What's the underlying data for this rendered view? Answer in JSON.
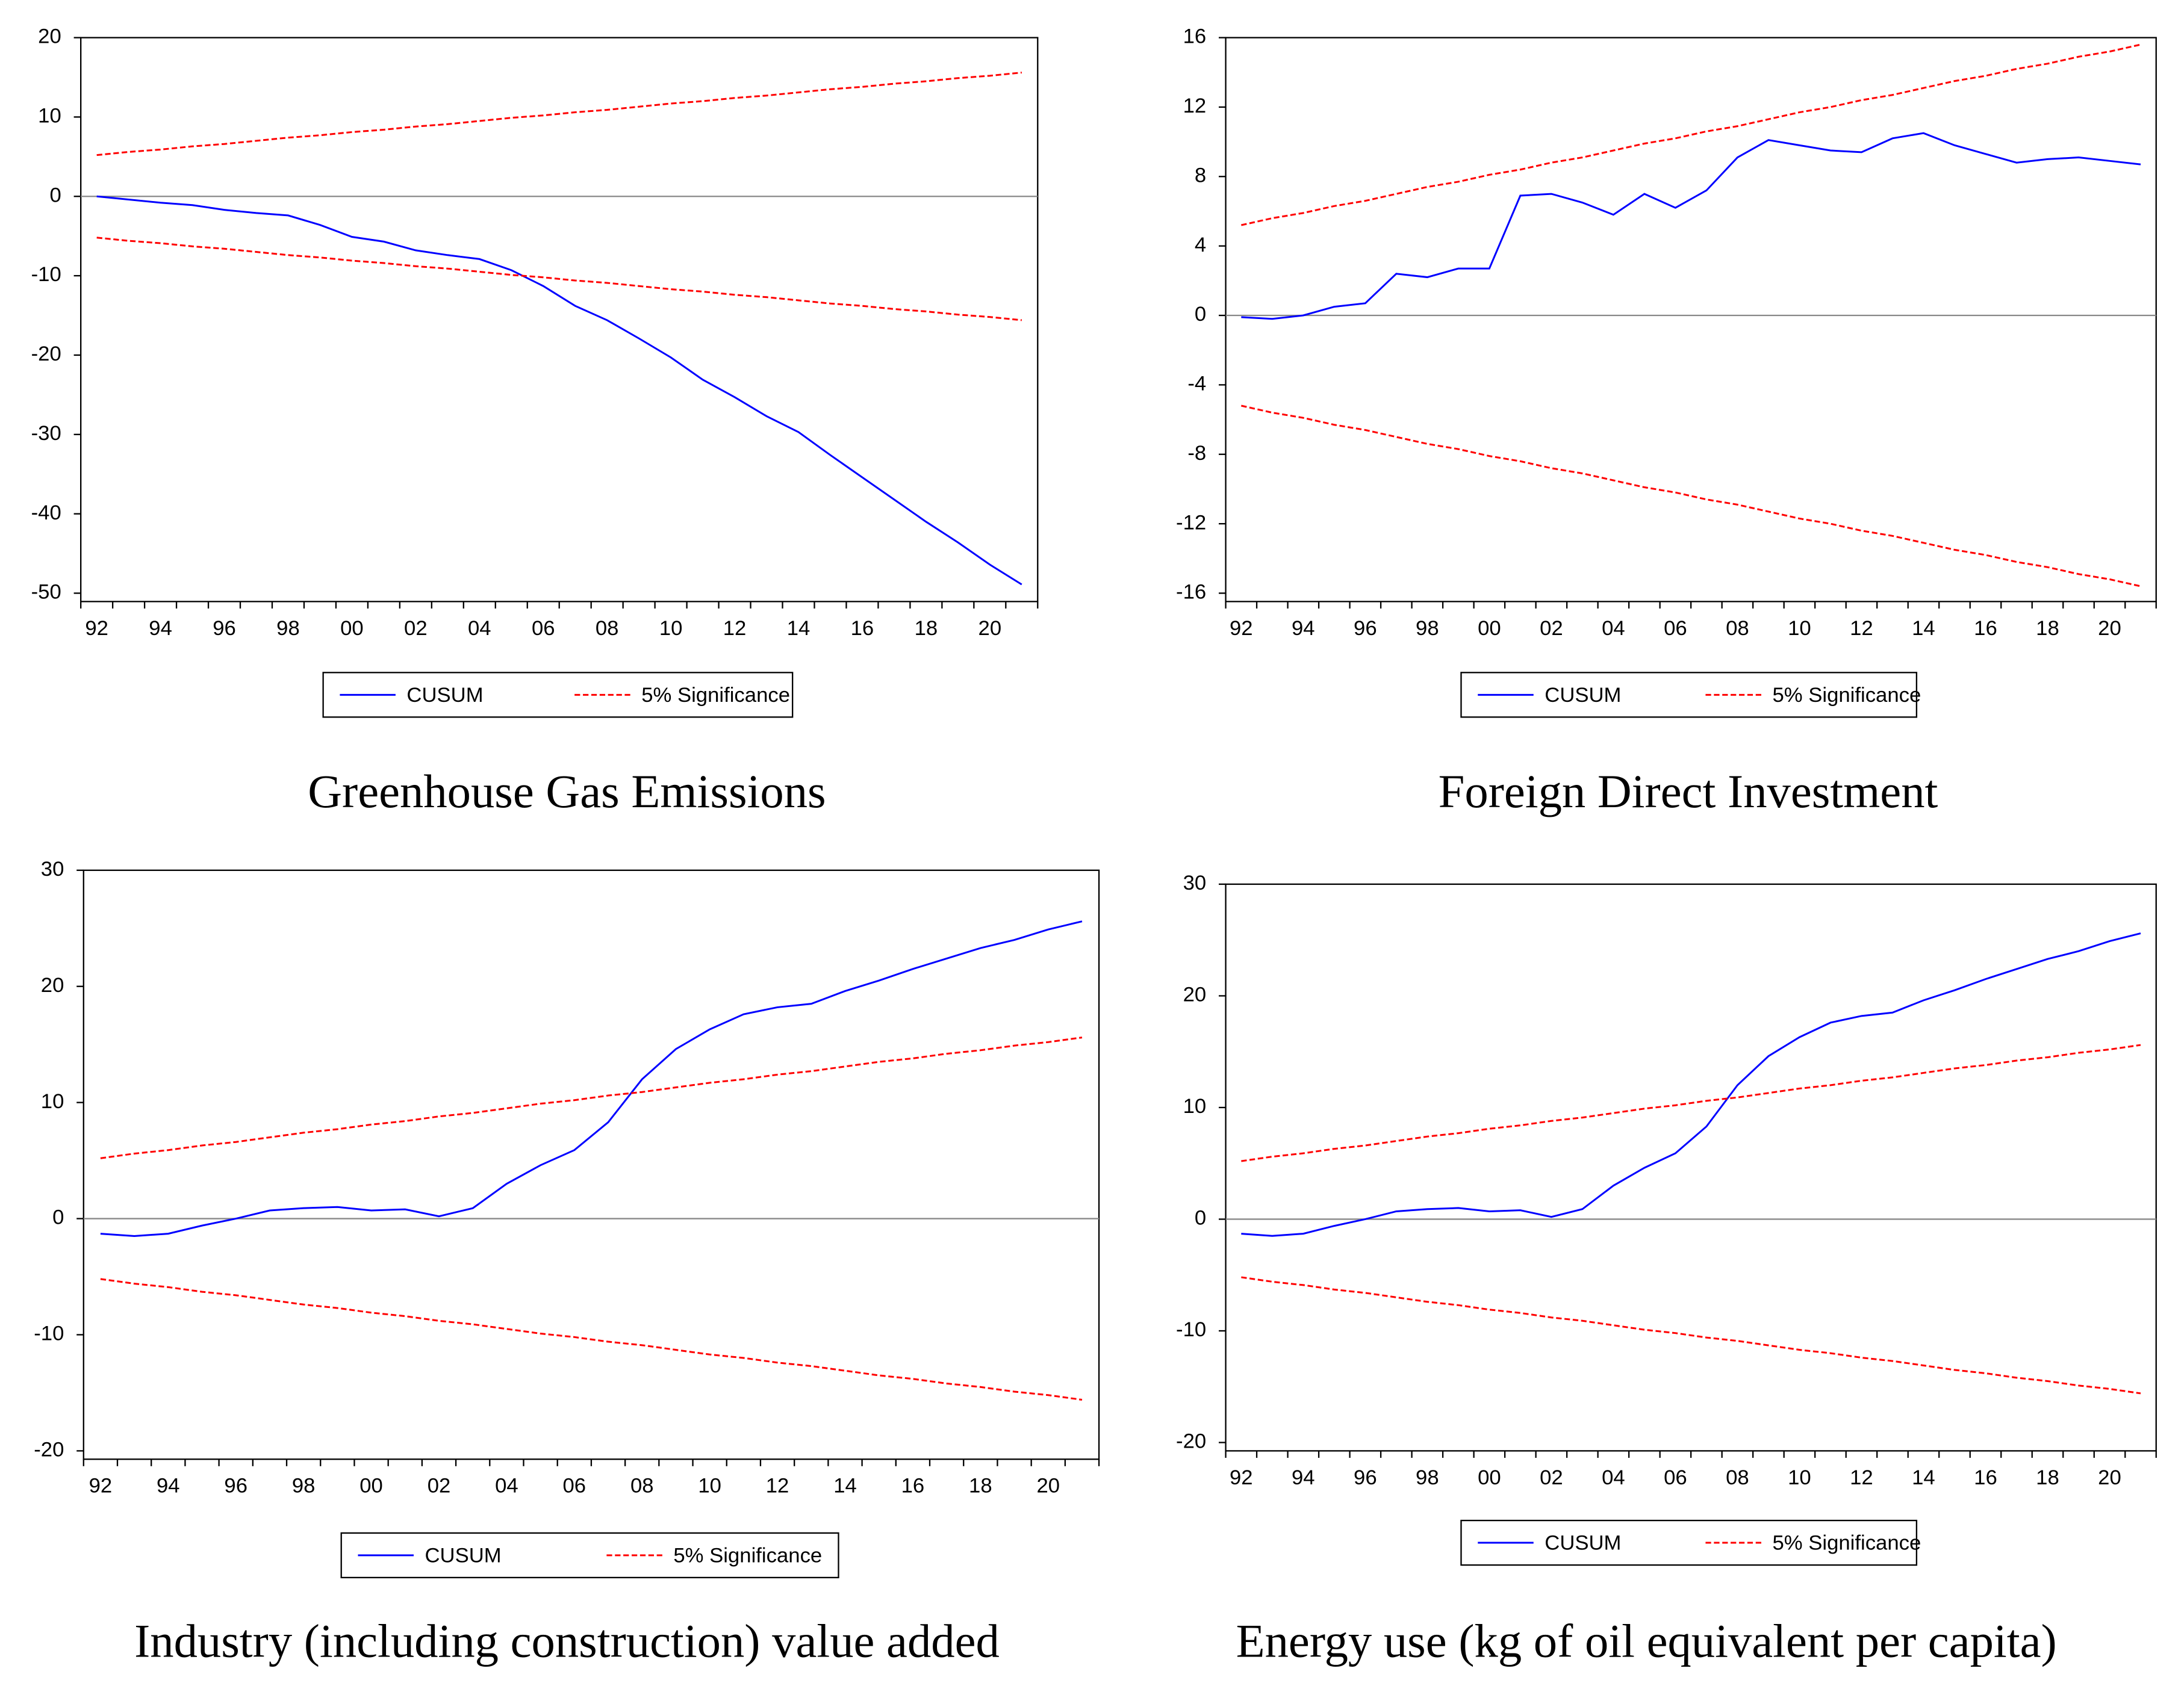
{
  "chart_data": [
    {
      "type": "line",
      "title": "Greenhouse Gas Emissions",
      "categories": [
        "92",
        null,
        "94",
        null,
        "96",
        null,
        "98",
        null,
        "00",
        null,
        "02",
        null,
        "04",
        null,
        "06",
        null,
        "08",
        null,
        "10",
        null,
        "12",
        null,
        "14",
        null,
        "16",
        null,
        "18",
        null,
        "20",
        null
      ],
      "series": [
        {
          "name": "CUSUM",
          "color": "#0000ff",
          "values": [
            0,
            -0.4,
            -0.8,
            -1.1,
            -1.7,
            -2.1,
            -2.4,
            -3.6,
            -5.1,
            -5.7,
            -6.8,
            -7.4,
            -7.9,
            -9.3,
            -11.3,
            -13.8,
            -15.6,
            -17.9,
            -20.3,
            -23.1,
            -25.3,
            -27.7,
            -29.7,
            -32.6,
            -35.4,
            -38.2,
            -41.0,
            -43.6,
            -46.4,
            -48.9
          ]
        },
        {
          "name": "5% Significance",
          "color": "#ff0000",
          "dashed": true,
          "values": [
            5.2,
            5.6,
            5.9,
            6.3,
            6.6,
            7.0,
            7.4,
            7.7,
            8.1,
            8.4,
            8.8,
            9.1,
            9.5,
            9.9,
            10.2,
            10.6,
            10.9,
            11.3,
            11.7,
            12.0,
            12.4,
            12.7,
            13.1,
            13.5,
            13.8,
            14.2,
            14.5,
            14.9,
            15.2,
            15.6
          ],
          "lower": [
            -5.2,
            -5.6,
            -5.9,
            -6.3,
            -6.6,
            -7.0,
            -7.4,
            -7.7,
            -8.1,
            -8.4,
            -8.8,
            -9.1,
            -9.5,
            -9.9,
            -10.2,
            -10.6,
            -10.9,
            -11.3,
            -11.7,
            -12.0,
            -12.4,
            -12.7,
            -13.1,
            -13.5,
            -13.8,
            -14.2,
            -14.5,
            -14.9,
            -15.2,
            -15.6
          ]
        }
      ],
      "ylim": [
        -50,
        20
      ],
      "yticks": [
        -50,
        -40,
        -30,
        -20,
        -10,
        0,
        10,
        20
      ]
    },
    {
      "type": "line",
      "title": "Foreign Direct Investment",
      "categories": [
        "92",
        null,
        "94",
        null,
        "96",
        null,
        "98",
        null,
        "00",
        null,
        "02",
        null,
        "04",
        null,
        "06",
        null,
        "08",
        null,
        "10",
        null,
        "12",
        null,
        "14",
        null,
        "16",
        null,
        "18",
        null,
        "20",
        null
      ],
      "series": [
        {
          "name": "CUSUM",
          "color": "#0000ff",
          "values": [
            -0.1,
            -0.2,
            0,
            0.5,
            0.7,
            2.4,
            2.2,
            2.7,
            2.7,
            6.9,
            7.0,
            6.5,
            5.8,
            7.0,
            6.2,
            7.2,
            9.1,
            10.1,
            9.8,
            9.5,
            9.4,
            10.2,
            10.5,
            9.8,
            9.3,
            8.8,
            9.0,
            9.1,
            8.9,
            8.7
          ]
        },
        {
          "name": "5% Significance",
          "color": "#ff0000",
          "dashed": true,
          "values": [
            5.2,
            5.6,
            5.9,
            6.3,
            6.6,
            7.0,
            7.4,
            7.7,
            8.1,
            8.4,
            8.8,
            9.1,
            9.5,
            9.9,
            10.2,
            10.6,
            10.9,
            11.3,
            11.7,
            12.0,
            12.4,
            12.7,
            13.1,
            13.5,
            13.8,
            14.2,
            14.5,
            14.9,
            15.2,
            15.6
          ],
          "lower": [
            -5.2,
            -5.6,
            -5.9,
            -6.3,
            -6.6,
            -7.0,
            -7.4,
            -7.7,
            -8.1,
            -8.4,
            -8.8,
            -9.1,
            -9.5,
            -9.9,
            -10.2,
            -10.6,
            -10.9,
            -11.3,
            -11.7,
            -12.0,
            -12.4,
            -12.7,
            -13.1,
            -13.5,
            -13.8,
            -14.2,
            -14.5,
            -14.9,
            -15.2,
            -15.6
          ]
        }
      ],
      "ylim": [
        -16,
        16
      ],
      "yticks": [
        -16,
        -12,
        -8,
        -4,
        0,
        4,
        8,
        12,
        16
      ]
    },
    {
      "type": "line",
      "title": "Industry (including construction) value added",
      "categories": [
        "92",
        null,
        "94",
        null,
        "96",
        null,
        "98",
        null,
        "00",
        null,
        "02",
        null,
        "04",
        null,
        "06",
        null,
        "08",
        null,
        "10",
        null,
        "12",
        null,
        "14",
        null,
        "16",
        null,
        "18",
        null,
        "20",
        null
      ],
      "series": [
        {
          "name": "CUSUM",
          "color": "#0000ff",
          "values": [
            -1.3,
            -1.5,
            -1.3,
            -0.6,
            0,
            0.7,
            0.9,
            1.0,
            0.7,
            0.8,
            0.2,
            0.9,
            3.0,
            4.6,
            5.9,
            8.3,
            12.0,
            14.6,
            16.3,
            17.6,
            18.2,
            18.5,
            19.6,
            20.5,
            21.5,
            22.4,
            23.3,
            24.0,
            24.9,
            25.6
          ]
        },
        {
          "name": "5% Significance",
          "color": "#ff0000",
          "dashed": true,
          "values": [
            5.2,
            5.6,
            5.9,
            6.3,
            6.6,
            7.0,
            7.4,
            7.7,
            8.1,
            8.4,
            8.8,
            9.1,
            9.5,
            9.9,
            10.2,
            10.6,
            10.9,
            11.3,
            11.7,
            12.0,
            12.4,
            12.7,
            13.1,
            13.5,
            13.8,
            14.2,
            14.5,
            14.9,
            15.2,
            15.6
          ],
          "lower": [
            -5.2,
            -5.6,
            -5.9,
            -6.3,
            -6.6,
            -7.0,
            -7.4,
            -7.7,
            -8.1,
            -8.4,
            -8.8,
            -9.1,
            -9.5,
            -9.9,
            -10.2,
            -10.6,
            -10.9,
            -11.3,
            -11.7,
            -12.0,
            -12.4,
            -12.7,
            -13.1,
            -13.5,
            -13.8,
            -14.2,
            -14.5,
            -14.9,
            -15.2,
            -15.6
          ]
        }
      ],
      "ylim": [
        -20,
        30
      ],
      "yticks": [
        -20,
        -10,
        0,
        10,
        20,
        30
      ]
    },
    {
      "type": "line",
      "title": "Energy use (kg of oil equivalent per capita)",
      "categories": [
        "92",
        null,
        "94",
        null,
        "96",
        null,
        "98",
        null,
        "00",
        null,
        "02",
        null,
        "04",
        null,
        "06",
        null,
        "08",
        null,
        "10",
        null,
        "12",
        null,
        "14",
        null,
        "16",
        null,
        "18",
        null,
        "20",
        null
      ],
      "series": [
        {
          "name": "CUSUM",
          "color": "#0000ff",
          "values": [
            -1.3,
            -1.5,
            -1.3,
            -0.6,
            0,
            0.7,
            0.9,
            1.0,
            0.7,
            0.8,
            0.2,
            0.9,
            3.0,
            4.6,
            5.9,
            8.3,
            12.0,
            14.6,
            16.3,
            17.6,
            18.2,
            18.5,
            19.6,
            20.5,
            21.5,
            22.4,
            23.3,
            24.0,
            24.9,
            25.6
          ]
        },
        {
          "name": "5% Significance",
          "color": "#ff0000",
          "dashed": true,
          "values": [
            5.2,
            5.6,
            5.9,
            6.3,
            6.6,
            7.0,
            7.4,
            7.7,
            8.1,
            8.4,
            8.8,
            9.1,
            9.5,
            9.9,
            10.2,
            10.6,
            10.9,
            11.3,
            11.7,
            12.0,
            12.4,
            12.7,
            13.1,
            13.5,
            13.8,
            14.2,
            14.5,
            14.9,
            15.2,
            15.6
          ],
          "lower": [
            -5.2,
            -5.6,
            -5.9,
            -6.3,
            -6.6,
            -7.0,
            -7.4,
            -7.7,
            -8.1,
            -8.4,
            -8.8,
            -9.1,
            -9.5,
            -9.9,
            -10.2,
            -10.6,
            -10.9,
            -11.3,
            -11.7,
            -12.0,
            -12.4,
            -12.7,
            -13.1,
            -13.5,
            -13.8,
            -14.2,
            -14.5,
            -14.9,
            -15.2,
            -15.6
          ]
        }
      ],
      "ylim": [
        -20,
        30
      ],
      "yticks": [
        -20,
        -10,
        0,
        10,
        20,
        30
      ]
    }
  ]
}
